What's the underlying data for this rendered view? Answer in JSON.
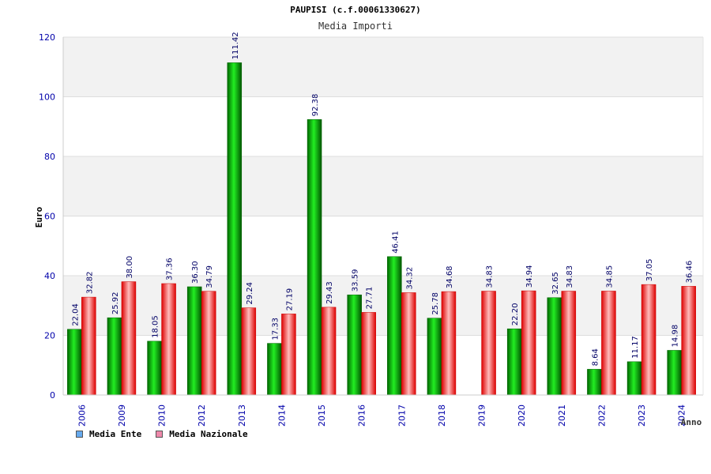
{
  "chart_data": {
    "type": "bar",
    "title": "PAUPISI (c.f.00061330627)",
    "subtitle": "Media Importi",
    "xlabel": "Anno",
    "ylabel": "Euro",
    "ylim": [
      0,
      120
    ],
    "yticks": [
      0,
      20,
      40,
      60,
      80,
      100,
      120
    ],
    "categories": [
      "2006",
      "2009",
      "2010",
      "2012",
      "2013",
      "2014",
      "2015",
      "2016",
      "2017",
      "2018",
      "2019",
      "2020",
      "2021",
      "2022",
      "2023",
      "2024"
    ],
    "series": [
      {
        "name": "Media Ente",
        "color": "#00aa00",
        "legend_color": "#66aaee",
        "values": [
          22.04,
          25.92,
          18.05,
          36.3,
          111.42,
          17.33,
          92.38,
          33.59,
          46.41,
          25.78,
          null,
          22.2,
          32.65,
          8.64,
          11.17,
          14.98
        ],
        "labels": [
          "22.04",
          "25.92",
          "18.05",
          "36.30",
          "111.42",
          "17.33",
          "92.38",
          "33.59",
          "46.41",
          "25.78",
          "",
          "22.20",
          "32.65",
          "8.64",
          "11.17",
          "14.98"
        ]
      },
      {
        "name": "Media Nazionale",
        "color": "#ee2222",
        "legend_color": "#ee88aa",
        "values": [
          32.82,
          38.0,
          37.36,
          34.79,
          29.24,
          27.19,
          29.43,
          27.71,
          34.32,
          34.68,
          34.83,
          34.94,
          34.83,
          34.85,
          37.05,
          36.46
        ],
        "labels": [
          "32.82",
          "38.00",
          "37.36",
          "34.79",
          "29.24",
          "27.19",
          "29.43",
          "27.71",
          "34.32",
          "34.68",
          "34.83",
          "34.94",
          "34.83",
          "34.85",
          "37.05",
          "36.46"
        ]
      }
    ],
    "grid": true,
    "legend_position": "bottom-left"
  }
}
